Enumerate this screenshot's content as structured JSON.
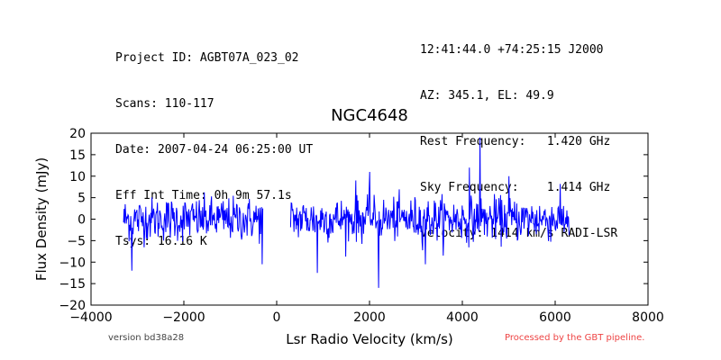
{
  "header_left": {
    "project": "Project ID: AGBT07A_023_02",
    "scans": "Scans: 110-117",
    "date": "Date: 2007-04-24 06:25:00 UT",
    "eff_int_time": "Eff Int Time: 0h 9m 57.1s",
    "tsys": "Tsys: 16.16 K"
  },
  "header_right": {
    "coords": "12:41:44.0 +74:25:15 J2000",
    "azel": "AZ: 345.1, EL: 49.9",
    "rest_freq": "Rest Frequency:   1.420 GHz",
    "sky_freq": "Sky Frequency:    1.414 GHz",
    "velocity": "Velocity: 1414 km/s RADI-LSR"
  },
  "footer": {
    "version": "version bd38a28",
    "pipeline": "Processed by the GBT pipeline.",
    "pipeline_color": "#ee4444"
  },
  "chart_data": {
    "type": "line",
    "title": "NGC4648",
    "xlabel": "Lsr Radio Velocity (km/s)",
    "ylabel": "Flux Density (mJy)",
    "xlim": [
      -4000,
      8000
    ],
    "ylim": [
      -20,
      20
    ],
    "xticks": [
      -4000,
      -2000,
      0,
      2000,
      4000,
      6000,
      8000
    ],
    "yticks": [
      -20,
      -15,
      -10,
      -5,
      0,
      5,
      10,
      15,
      20
    ],
    "grid": false,
    "line_color": "#0000ff",
    "noise_sigma": 2.5,
    "series": [
      {
        "segments": [
          {
            "x_start": -3300,
            "x_end": -300,
            "envelope_min": -12,
            "envelope_max": 8
          },
          {
            "x_start": 300,
            "x_end": 6300,
            "envelope_min": -16,
            "envelope_max": 19
          }
        ],
        "features": [
          {
            "x": 2200,
            "y": -16
          },
          {
            "x": 4380,
            "y": 19
          },
          {
            "x": 880,
            "y": -12.5
          },
          {
            "x": -3120,
            "y": -12
          },
          {
            "x": -310,
            "y": -10.5
          },
          {
            "x": 4150,
            "y": 12
          },
          {
            "x": 2000,
            "y": 11
          },
          {
            "x": 5000,
            "y": 10
          },
          {
            "x": 3200,
            "y": -10.5
          },
          {
            "x": 1700,
            "y": 9
          }
        ]
      }
    ]
  }
}
